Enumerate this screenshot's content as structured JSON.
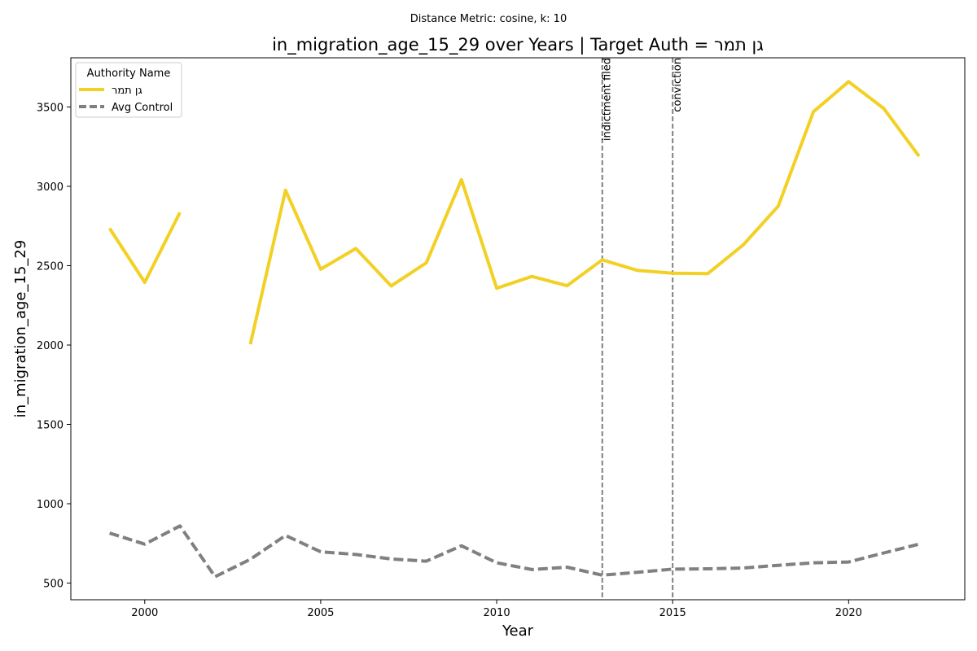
{
  "chart_data": {
    "type": "line",
    "suptitle": "Distance Metric: cosine, k: 10",
    "title": "in_migration_age_15_29 over Years | Target Auth = גן תמר",
    "xlabel": "Year",
    "ylabel": "in_migration_age_15_29",
    "xlim": [
      1997.9,
      2023.3
    ],
    "ylim": [
      395,
      3810
    ],
    "x_ticks": [
      2000,
      2005,
      2010,
      2015,
      2020
    ],
    "y_ticks": [
      500,
      1000,
      1500,
      2000,
      2500,
      3000,
      3500
    ],
    "grid": false,
    "legend": {
      "title": "Authority Name",
      "placement": "top-left"
    },
    "series": [
      {
        "name": "גן תמר",
        "color": "#f2d024",
        "style": "solid",
        "x": [
          1999,
          2000,
          2001,
          2002,
          2003,
          2004,
          2005,
          2006,
          2007,
          2008,
          2009,
          2010,
          2011,
          2012,
          2013,
          2014,
          2015,
          2016,
          2017,
          2018,
          2019,
          2020,
          2021,
          2022
        ],
        "values": [
          2735,
          2395,
          2835,
          null,
          2005,
          2975,
          2478,
          2608,
          2372,
          2518,
          3042,
          2358,
          2432,
          2374,
          2537,
          2470,
          2452,
          2450,
          2630,
          2875,
          3470,
          3660,
          3490,
          3190
        ]
      },
      {
        "name": "Avg Control",
        "color": "#808080",
        "style": "dashed",
        "x": [
          1999,
          2000,
          2001,
          2002,
          2003,
          2004,
          2005,
          2006,
          2007,
          2008,
          2009,
          2010,
          2011,
          2012,
          2013,
          2014,
          2015,
          2016,
          2017,
          2018,
          2019,
          2020,
          2021,
          2022
        ],
        "values": [
          815,
          745,
          860,
          540,
          650,
          800,
          697,
          680,
          652,
          638,
          735,
          628,
          585,
          600,
          550,
          568,
          588,
          590,
          595,
          612,
          628,
          633,
          690,
          745
        ]
      }
    ],
    "events": [
      {
        "x": 2013,
        "label": "indictment filed"
      },
      {
        "x": 2015,
        "label": "conviction"
      }
    ]
  }
}
